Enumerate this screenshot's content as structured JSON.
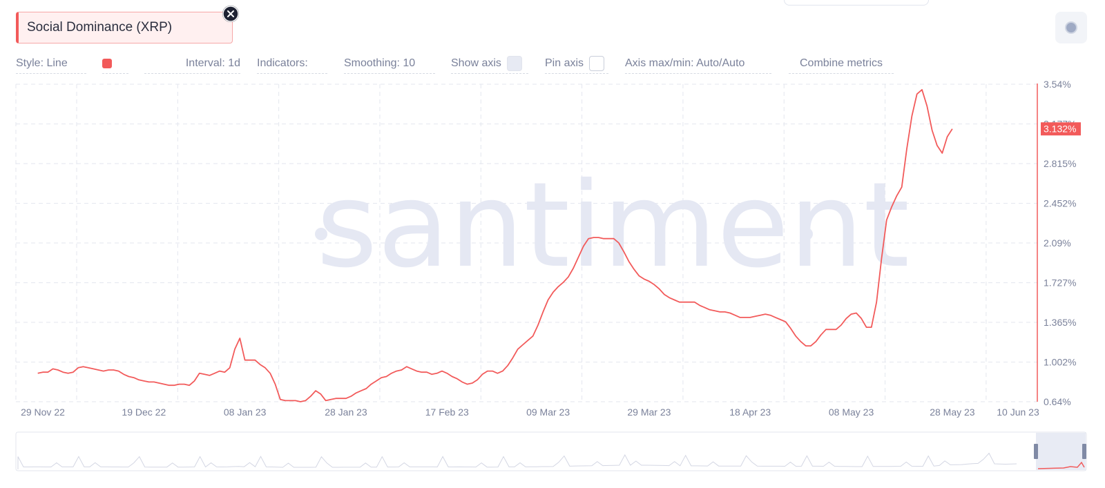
{
  "metric": {
    "label": "Social Dominance (XRP)"
  },
  "toolbar": {
    "style": "Style: Line",
    "interval": "Interval: 1d",
    "indicators": "Indicators:",
    "smoothing": "Smoothing: 10",
    "show_axis": "Show axis",
    "pin_axis": "Pin axis",
    "axis_maxmin": "Axis max/min: Auto/Auto",
    "combine": "Combine metrics"
  },
  "watermark": "santiment",
  "colors": {
    "series": "#f25a5a",
    "grid": "#e3e6ee",
    "watermark": "#e5e8f3",
    "navigator": "#d9dce8"
  },
  "icons": {
    "close": "close-icon",
    "settings": "settings-dot-icon"
  },
  "chart_data": {
    "type": "line",
    "title": "",
    "xlabel": "",
    "ylabel": "",
    "ylim": [
      0.64,
      3.54
    ],
    "y_ticks": [
      "3.54%",
      "3.177%",
      "2.815%",
      "2.452%",
      "2.09%",
      "1.727%",
      "1.365%",
      "1.002%",
      "0.64%"
    ],
    "y_tick_values": [
      3.54,
      3.177,
      2.815,
      2.452,
      2.09,
      1.727,
      1.365,
      1.002,
      0.64
    ],
    "x_ticks": [
      "29 Nov 22",
      "19 Dec 22",
      "08 Jan 23",
      "28 Jan 23",
      "17 Feb 23",
      "09 Mar 23",
      "29 Mar 23",
      "18 Apr 23",
      "08 May 23",
      "28 May 23",
      "10 Jun 23"
    ],
    "x_tick_days": [
      0,
      20,
      40,
      60,
      80,
      100,
      120,
      140,
      160,
      180,
      193
    ],
    "x_unit": "days since 29 Nov 22",
    "grid": true,
    "last_value_label": "3.132%",
    "series": [
      {
        "name": "Social Dominance (XRP)",
        "color": "#f25a5a",
        "points": [
          [
            -1,
            0.9
          ],
          [
            0,
            0.91
          ],
          [
            1,
            0.91
          ],
          [
            2,
            0.94
          ],
          [
            3,
            0.93
          ],
          [
            4,
            0.91
          ],
          [
            5,
            0.9
          ],
          [
            6,
            0.91
          ],
          [
            7,
            0.95
          ],
          [
            8,
            0.96
          ],
          [
            9,
            0.95
          ],
          [
            10,
            0.94
          ],
          [
            11,
            0.93
          ],
          [
            12,
            0.92
          ],
          [
            13,
            0.93
          ],
          [
            14,
            0.93
          ],
          [
            15,
            0.92
          ],
          [
            16,
            0.89
          ],
          [
            17,
            0.87
          ],
          [
            18,
            0.86
          ],
          [
            19,
            0.84
          ],
          [
            20,
            0.83
          ],
          [
            21,
            0.82
          ],
          [
            22,
            0.82
          ],
          [
            23,
            0.81
          ],
          [
            24,
            0.8
          ],
          [
            25,
            0.79
          ],
          [
            26,
            0.79
          ],
          [
            27,
            0.8
          ],
          [
            28,
            0.8
          ],
          [
            29,
            0.79
          ],
          [
            30,
            0.83
          ],
          [
            31,
            0.9
          ],
          [
            32,
            0.89
          ],
          [
            33,
            0.88
          ],
          [
            34,
            0.9
          ],
          [
            35,
            0.92
          ],
          [
            36,
            0.91
          ],
          [
            37,
            0.95
          ],
          [
            38,
            1.12
          ],
          [
            39,
            1.22
          ],
          [
            40,
            1.02
          ],
          [
            41,
            1.02
          ],
          [
            42,
            1.02
          ],
          [
            43,
            0.98
          ],
          [
            44,
            0.95
          ],
          [
            45,
            0.9
          ],
          [
            46,
            0.8
          ],
          [
            47,
            0.66
          ],
          [
            48,
            0.65
          ],
          [
            49,
            0.65
          ],
          [
            50,
            0.65
          ],
          [
            51,
            0.64
          ],
          [
            52,
            0.65
          ],
          [
            53,
            0.69
          ],
          [
            54,
            0.74
          ],
          [
            55,
            0.71
          ],
          [
            56,
            0.65
          ],
          [
            57,
            0.66
          ],
          [
            58,
            0.67
          ],
          [
            59,
            0.67
          ],
          [
            60,
            0.67
          ],
          [
            61,
            0.69
          ],
          [
            62,
            0.72
          ],
          [
            63,
            0.74
          ],
          [
            64,
            0.76
          ],
          [
            65,
            0.8
          ],
          [
            66,
            0.83
          ],
          [
            67,
            0.86
          ],
          [
            68,
            0.87
          ],
          [
            69,
            0.9
          ],
          [
            70,
            0.92
          ],
          [
            71,
            0.93
          ],
          [
            72,
            0.96
          ],
          [
            73,
            0.94
          ],
          [
            74,
            0.92
          ],
          [
            75,
            0.91
          ],
          [
            76,
            0.91
          ],
          [
            77,
            0.89
          ],
          [
            78,
            0.9
          ],
          [
            79,
            0.92
          ],
          [
            80,
            0.9
          ],
          [
            81,
            0.87
          ],
          [
            82,
            0.85
          ],
          [
            83,
            0.82
          ],
          [
            84,
            0.8
          ],
          [
            85,
            0.81
          ],
          [
            86,
            0.84
          ],
          [
            87,
            0.89
          ],
          [
            88,
            0.92
          ],
          [
            89,
            0.92
          ],
          [
            90,
            0.9
          ],
          [
            91,
            0.92
          ],
          [
            92,
            0.97
          ],
          [
            93,
            1.04
          ],
          [
            94,
            1.12
          ],
          [
            95,
            1.16
          ],
          [
            96,
            1.2
          ],
          [
            97,
            1.24
          ],
          [
            98,
            1.34
          ],
          [
            99,
            1.46
          ],
          [
            100,
            1.57
          ],
          [
            101,
            1.64
          ],
          [
            102,
            1.69
          ],
          [
            103,
            1.73
          ],
          [
            104,
            1.78
          ],
          [
            105,
            1.86
          ],
          [
            106,
            1.96
          ],
          [
            107,
            2.06
          ],
          [
            108,
            2.13
          ],
          [
            109,
            2.14
          ],
          [
            110,
            2.14
          ],
          [
            111,
            2.13
          ],
          [
            112,
            2.13
          ],
          [
            113,
            2.13
          ],
          [
            114,
            2.09
          ],
          [
            115,
            2.01
          ],
          [
            116,
            1.92
          ],
          [
            117,
            1.85
          ],
          [
            118,
            1.79
          ],
          [
            119,
            1.76
          ],
          [
            120,
            1.74
          ],
          [
            121,
            1.71
          ],
          [
            122,
            1.67
          ],
          [
            123,
            1.62
          ],
          [
            124,
            1.59
          ],
          [
            125,
            1.57
          ],
          [
            126,
            1.55
          ],
          [
            127,
            1.55
          ],
          [
            128,
            1.55
          ],
          [
            129,
            1.55
          ],
          [
            130,
            1.52
          ],
          [
            131,
            1.5
          ],
          [
            132,
            1.48
          ],
          [
            133,
            1.47
          ],
          [
            134,
            1.46
          ],
          [
            135,
            1.46
          ],
          [
            136,
            1.45
          ],
          [
            137,
            1.43
          ],
          [
            138,
            1.41
          ],
          [
            139,
            1.41
          ],
          [
            140,
            1.41
          ],
          [
            141,
            1.42
          ],
          [
            142,
            1.43
          ],
          [
            143,
            1.44
          ],
          [
            144,
            1.43
          ],
          [
            145,
            1.41
          ],
          [
            146,
            1.39
          ],
          [
            147,
            1.37
          ],
          [
            148,
            1.31
          ],
          [
            149,
            1.24
          ],
          [
            150,
            1.19
          ],
          [
            151,
            1.15
          ],
          [
            152,
            1.15
          ],
          [
            153,
            1.19
          ],
          [
            154,
            1.25
          ],
          [
            155,
            1.3
          ],
          [
            156,
            1.3
          ],
          [
            157,
            1.3
          ],
          [
            158,
            1.34
          ],
          [
            159,
            1.4
          ],
          [
            160,
            1.44
          ],
          [
            161,
            1.45
          ],
          [
            162,
            1.4
          ],
          [
            163,
            1.32
          ],
          [
            164,
            1.32
          ],
          [
            165,
            1.55
          ],
          [
            166,
            1.95
          ],
          [
            167,
            2.3
          ],
          [
            168,
            2.42
          ],
          [
            169,
            2.52
          ],
          [
            170,
            2.6
          ],
          [
            171,
            2.95
          ],
          [
            172,
            3.25
          ],
          [
            173,
            3.45
          ],
          [
            174,
            3.49
          ],
          [
            175,
            3.34
          ],
          [
            176,
            3.12
          ],
          [
            177,
            2.98
          ],
          [
            178,
            2.91
          ],
          [
            179,
            3.06
          ],
          [
            180,
            3.132
          ]
        ]
      }
    ]
  }
}
